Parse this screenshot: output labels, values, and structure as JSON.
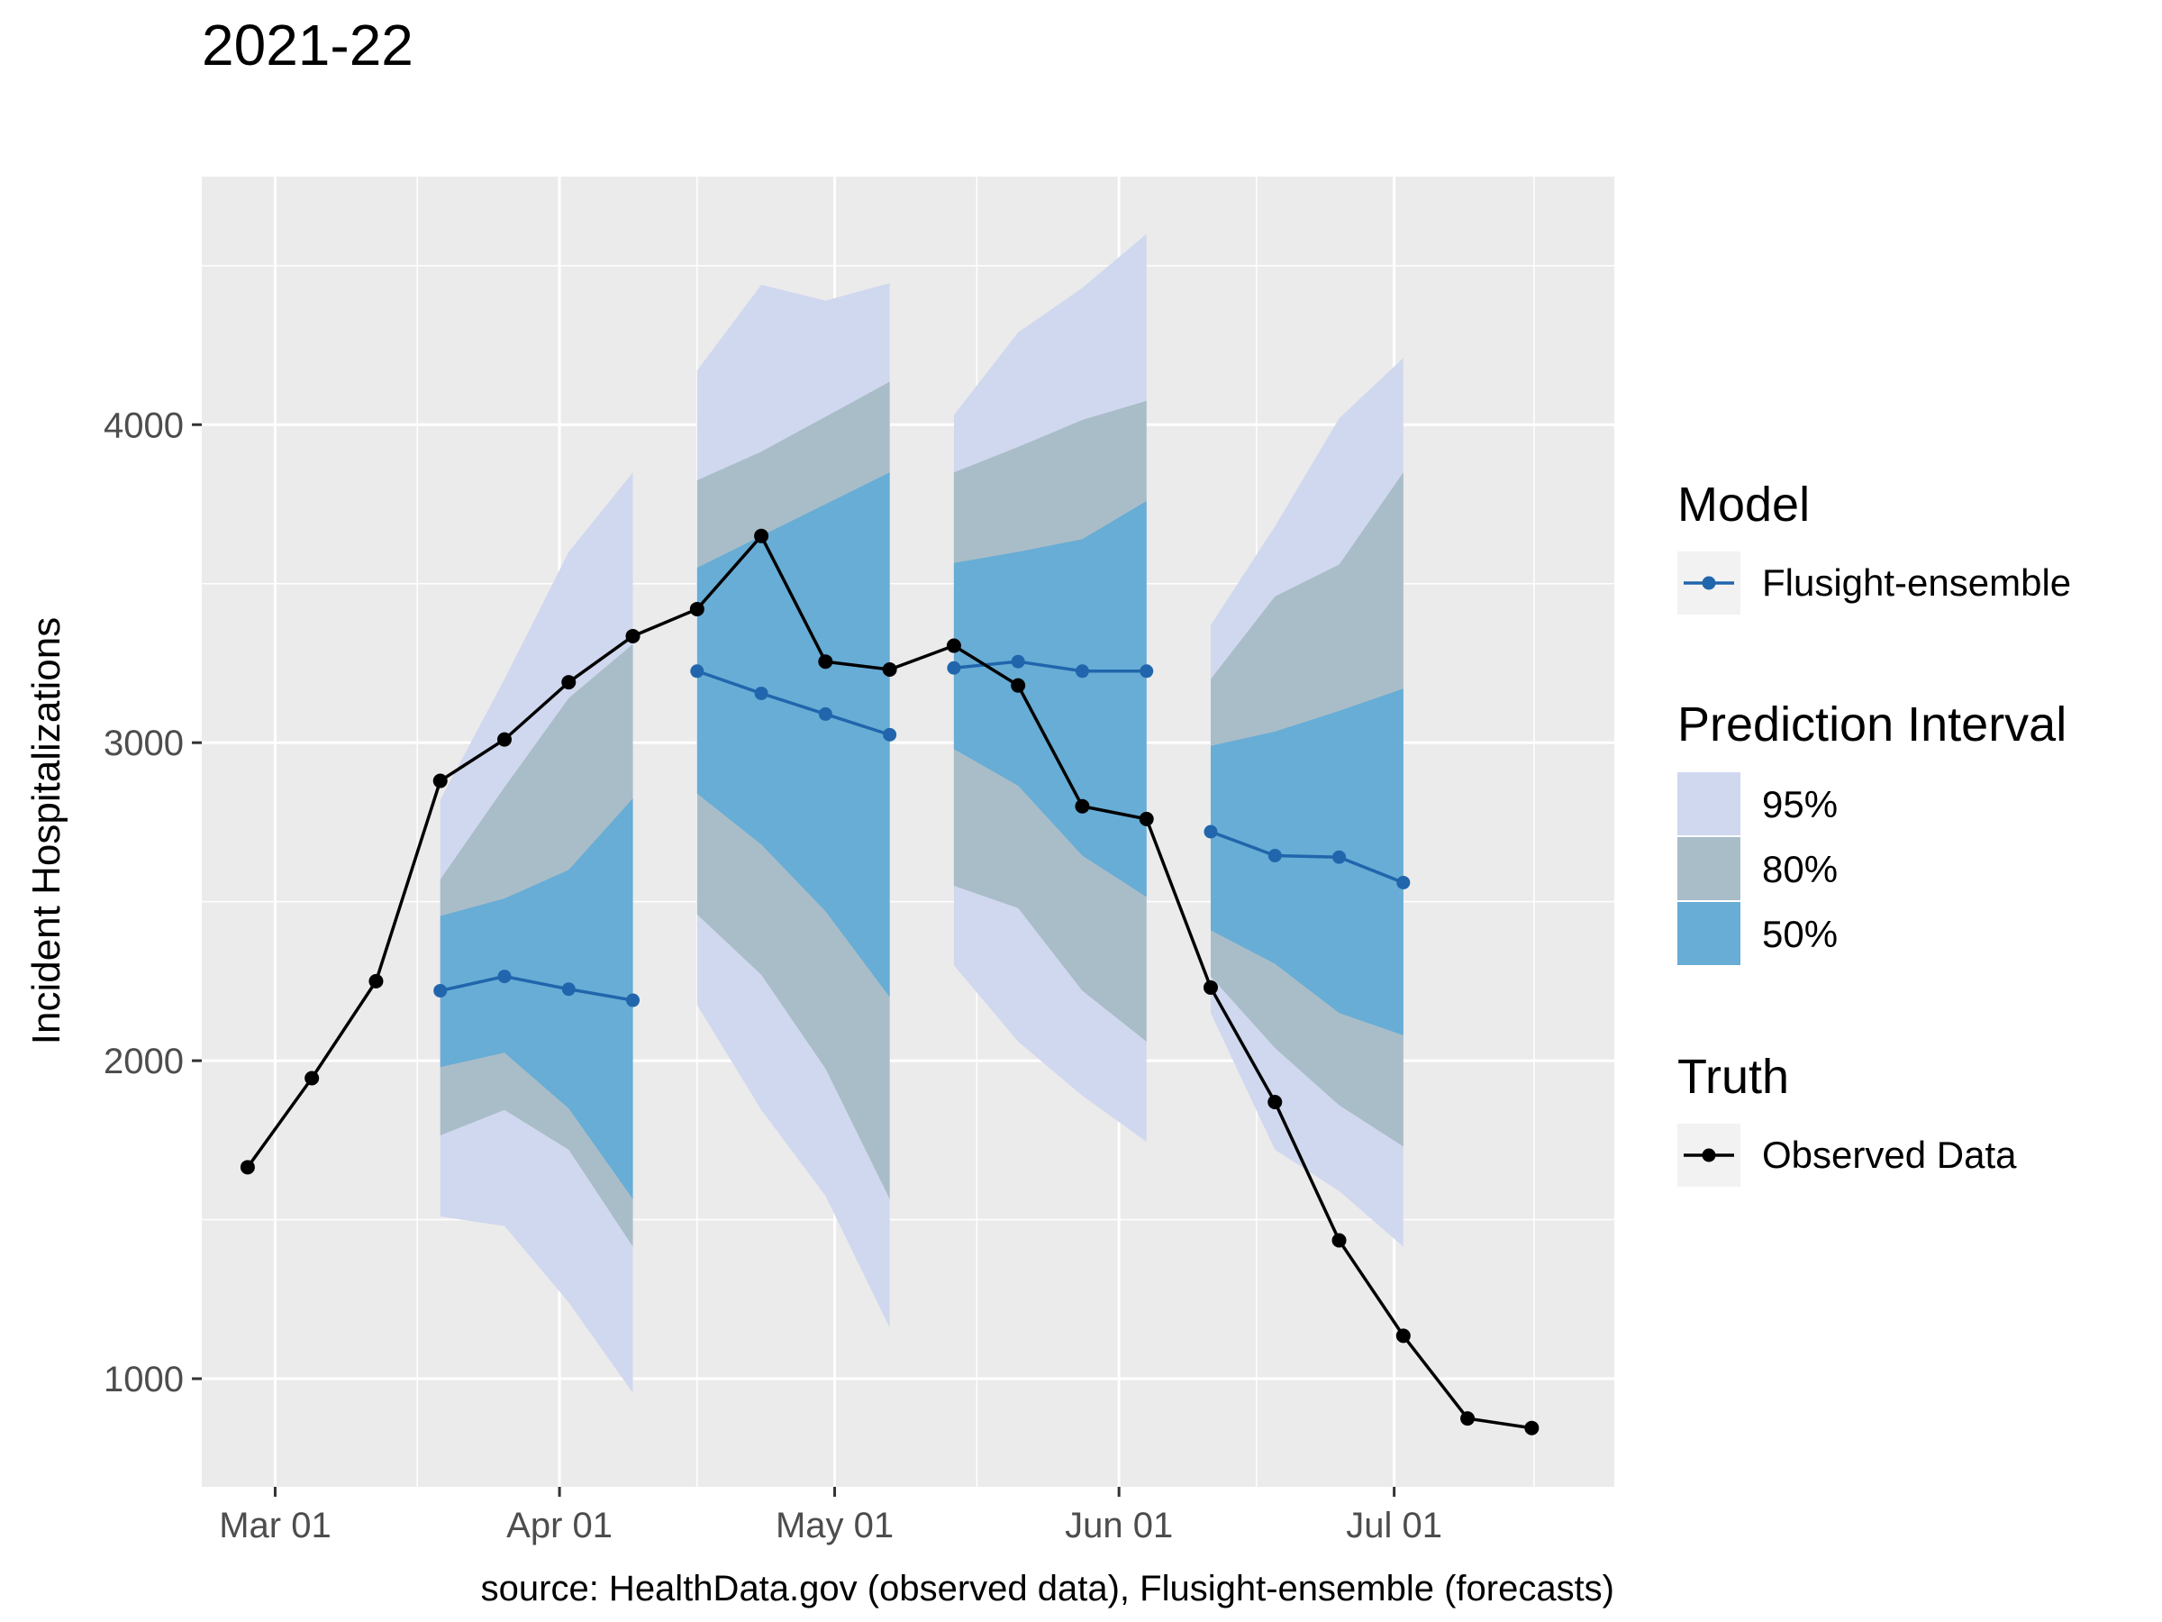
{
  "chart_data": {
    "type": "line",
    "title": "2021-22",
    "ylabel": "Incident Hospitalizations",
    "xlabel": "",
    "caption": "source: HealthData.gov (observed data), Flusight-ensemble (forecasts)",
    "x_range": [
      "2022-02-21",
      "2022-07-25"
    ],
    "ylim": [
      660,
      4780
    ],
    "grid": true,
    "x_ticks": [
      {
        "date": "2022-03-01",
        "label": "Mar 01"
      },
      {
        "date": "2022-04-01",
        "label": "Apr 01"
      },
      {
        "date": "2022-05-01",
        "label": "May 01"
      },
      {
        "date": "2022-06-01",
        "label": "Jun 01"
      },
      {
        "date": "2022-07-01",
        "label": "Jul 01"
      }
    ],
    "y_ticks": [
      1000,
      2000,
      3000,
      4000
    ],
    "truth": {
      "name": "Observed Data",
      "color": "#000000",
      "points": [
        {
          "x": "2022-02-26",
          "y": 1665
        },
        {
          "x": "2022-03-05",
          "y": 1945
        },
        {
          "x": "2022-03-12",
          "y": 2250
        },
        {
          "x": "2022-03-19",
          "y": 2880
        },
        {
          "x": "2022-03-26",
          "y": 3010
        },
        {
          "x": "2022-04-02",
          "y": 3190
        },
        {
          "x": "2022-04-09",
          "y": 3335
        },
        {
          "x": "2022-04-16",
          "y": 3420
        },
        {
          "x": "2022-04-23",
          "y": 3650
        },
        {
          "x": "2022-04-30",
          "y": 3255
        },
        {
          "x": "2022-05-07",
          "y": 3230
        },
        {
          "x": "2022-05-14",
          "y": 3305
        },
        {
          "x": "2022-05-21",
          "y": 3180
        },
        {
          "x": "2022-05-28",
          "y": 2800
        },
        {
          "x": "2022-06-04",
          "y": 2760
        },
        {
          "x": "2022-06-11",
          "y": 2230
        },
        {
          "x": "2022-06-18",
          "y": 1870
        },
        {
          "x": "2022-06-25",
          "y": 1435
        },
        {
          "x": "2022-07-02",
          "y": 1135
        },
        {
          "x": "2022-07-09",
          "y": 875
        },
        {
          "x": "2022-07-16",
          "y": 845
        }
      ]
    },
    "forecasts": [
      {
        "dates": [
          "2022-03-19",
          "2022-03-26",
          "2022-04-02",
          "2022-04-09"
        ],
        "median": [
          2220,
          2265,
          2225,
          2190
        ],
        "q50": {
          "lower": [
            1980,
            2025,
            1850,
            1565
          ],
          "upper": [
            2455,
            2510,
            2600,
            2825
          ]
        },
        "q80": {
          "lower": [
            1765,
            1845,
            1720,
            1415
          ],
          "upper": [
            2570,
            2860,
            3140,
            3310
          ]
        },
        "q95": {
          "lower": [
            1510,
            1480,
            1240,
            955
          ],
          "upper": [
            2820,
            3200,
            3600,
            3850
          ]
        }
      },
      {
        "dates": [
          "2022-04-16",
          "2022-04-23",
          "2022-04-30",
          "2022-05-07"
        ],
        "median": [
          3225,
          3155,
          3090,
          3025
        ],
        "q50": {
          "lower": [
            2840,
            2680,
            2470,
            2200
          ],
          "upper": [
            3550,
            3650,
            3750,
            3850
          ]
        },
        "q80": {
          "lower": [
            2460,
            2270,
            1975,
            1565
          ],
          "upper": [
            3825,
            3915,
            4025,
            4135
          ]
        },
        "q95": {
          "lower": [
            2175,
            1845,
            1575,
            1160
          ],
          "upper": [
            4170,
            4440,
            4390,
            4445
          ]
        }
      },
      {
        "dates": [
          "2022-05-14",
          "2022-05-21",
          "2022-05-28",
          "2022-06-04"
        ],
        "median": [
          3235,
          3255,
          3225,
          3225
        ],
        "q50": {
          "lower": [
            2980,
            2865,
            2645,
            2515
          ],
          "upper": [
            3565,
            3600,
            3640,
            3760
          ]
        },
        "q80": {
          "lower": [
            2550,
            2480,
            2220,
            2060
          ],
          "upper": [
            3850,
            3930,
            4015,
            4075
          ]
        },
        "q95": {
          "lower": [
            2300,
            2060,
            1890,
            1745
          ],
          "upper": [
            4030,
            4290,
            4430,
            4600
          ]
        }
      },
      {
        "dates": [
          "2022-06-11",
          "2022-06-18",
          "2022-06-25",
          "2022-07-02"
        ],
        "median": [
          2720,
          2645,
          2640,
          2560
        ],
        "q50": {
          "lower": [
            2410,
            2305,
            2150,
            2080
          ],
          "upper": [
            2990,
            3035,
            3100,
            3170
          ]
        },
        "q80": {
          "lower": [
            2265,
            2040,
            1860,
            1730
          ],
          "upper": [
            3200,
            3460,
            3560,
            3850
          ]
        },
        "q95": {
          "lower": [
            2150,
            1720,
            1590,
            1415
          ],
          "upper": [
            3370,
            3680,
            4020,
            4210
          ]
        }
      }
    ],
    "model_color": "#2166AC",
    "band_colors": {
      "q95": "#D0D8EF",
      "q80": "#A9BDC8",
      "q50": "#67ADD6"
    },
    "legend": {
      "position": "right",
      "model_title": "Model",
      "model_label": "Flusight-ensemble",
      "pi_title": "Prediction Interval",
      "pi_labels": [
        "95%",
        "80%",
        "50%"
      ],
      "truth_title": "Truth",
      "truth_label": "Observed Data"
    }
  }
}
